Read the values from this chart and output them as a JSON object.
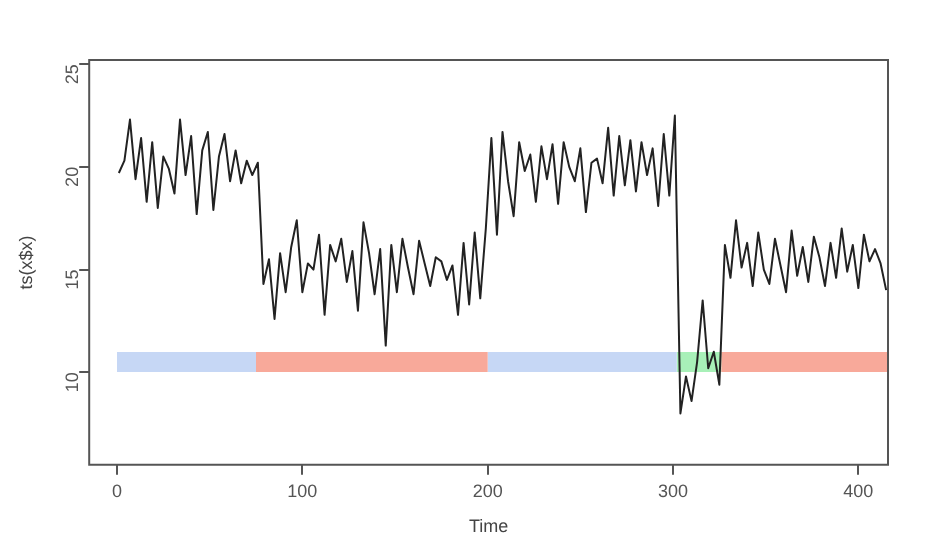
{
  "chart_data": {
    "type": "line",
    "xlabel": "Time",
    "ylabel": "ts(x$x)",
    "xlim": [
      -15,
      416
    ],
    "ylim": [
      5.5,
      25.2
    ],
    "xticks": [
      0,
      100,
      200,
      300,
      400
    ],
    "yticks": [
      10,
      15,
      20,
      25
    ],
    "grid": false,
    "legend": false,
    "marker": "none",
    "line_style": "solid",
    "series": [
      {
        "color": "#222222",
        "x": [
          1,
          4,
          7,
          10,
          13,
          16,
          19,
          22,
          25,
          28,
          31,
          34,
          37,
          40,
          43,
          46,
          49,
          52,
          55,
          58,
          61,
          64,
          67,
          70,
          73,
          76,
          79,
          82,
          85,
          88,
          91,
          94,
          97,
          100,
          103,
          106,
          109,
          112,
          115,
          118,
          121,
          124,
          127,
          130,
          133,
          136,
          139,
          142,
          145,
          148,
          151,
          154,
          157,
          160,
          163,
          166,
          169,
          172,
          175,
          178,
          181,
          184,
          187,
          190,
          193,
          196,
          199,
          202,
          205,
          208,
          211,
          214,
          217,
          220,
          223,
          226,
          229,
          232,
          235,
          238,
          241,
          244,
          247,
          250,
          253,
          256,
          259,
          262,
          265,
          268,
          271,
          274,
          277,
          280,
          283,
          286,
          289,
          292,
          295,
          298,
          301,
          304,
          307,
          310,
          313,
          316,
          319,
          322,
          325,
          328,
          331,
          334,
          337,
          340,
          343,
          346,
          349,
          352,
          355,
          358,
          361,
          364,
          367,
          370,
          373,
          376,
          379,
          382,
          385,
          388,
          391,
          394,
          397,
          400,
          403,
          406,
          409,
          412,
          415
        ],
        "values": [
          19.7,
          20.3,
          22.3,
          19.4,
          21.4,
          18.3,
          21.2,
          18.0,
          20.5,
          19.9,
          18.7,
          22.3,
          19.6,
          21.5,
          17.7,
          20.8,
          21.7,
          17.9,
          20.5,
          21.6,
          19.3,
          20.8,
          19.2,
          20.3,
          19.6,
          20.2,
          14.3,
          15.5,
          12.6,
          15.8,
          13.9,
          16.1,
          17.4,
          13.9,
          15.3,
          15.0,
          16.7,
          12.8,
          16.2,
          15.4,
          16.5,
          14.4,
          15.9,
          13.0,
          17.3,
          15.8,
          13.8,
          16.0,
          11.3,
          16.2,
          13.9,
          16.5,
          15.1,
          13.8,
          16.4,
          15.3,
          14.2,
          15.6,
          15.4,
          14.5,
          15.2,
          12.8,
          16.3,
          13.3,
          16.8,
          13.6,
          17.0,
          21.4,
          16.7,
          21.7,
          19.3,
          17.6,
          21.2,
          19.8,
          20.6,
          18.3,
          21.0,
          19.4,
          21.1,
          18.2,
          21.2,
          20.0,
          19.3,
          20.9,
          17.8,
          20.2,
          20.4,
          19.2,
          21.9,
          18.6,
          21.5,
          19.1,
          21.3,
          18.8,
          21.2,
          19.6,
          20.9,
          18.1,
          21.6,
          18.6,
          22.5,
          8.0,
          9.8,
          8.6,
          10.5,
          13.5,
          10.2,
          11.0,
          9.4,
          16.2,
          14.6,
          17.4,
          15.1,
          16.3,
          14.2,
          16.8,
          15.0,
          14.3,
          16.5,
          15.2,
          13.9,
          16.9,
          14.7,
          16.1,
          14.4,
          16.6,
          15.6,
          14.2,
          16.3,
          14.6,
          17.0,
          14.9,
          16.2,
          14.1,
          16.7,
          15.4,
          16.0,
          15.3,
          14.0
        ]
      },
      {
        "color": "#c6d7f5",
        "x": [
          0,
          75
        ],
        "values": [
          10.5,
          10.5
        ]
      },
      {
        "color": "#f8a99a",
        "x": [
          75,
          200
        ],
        "values": [
          10.5,
          10.5
        ]
      },
      {
        "color": "#c6d7f5",
        "x": [
          200,
          302
        ],
        "values": [
          10.5,
          10.5
        ]
      },
      {
        "color": "#a8f0b8",
        "x": [
          302,
          326
        ],
        "values": [
          10.5,
          10.5
        ]
      },
      {
        "color": "#f8a99a",
        "x": [
          326,
          416
        ],
        "values": [
          10.5,
          10.5
        ]
      }
    ]
  }
}
